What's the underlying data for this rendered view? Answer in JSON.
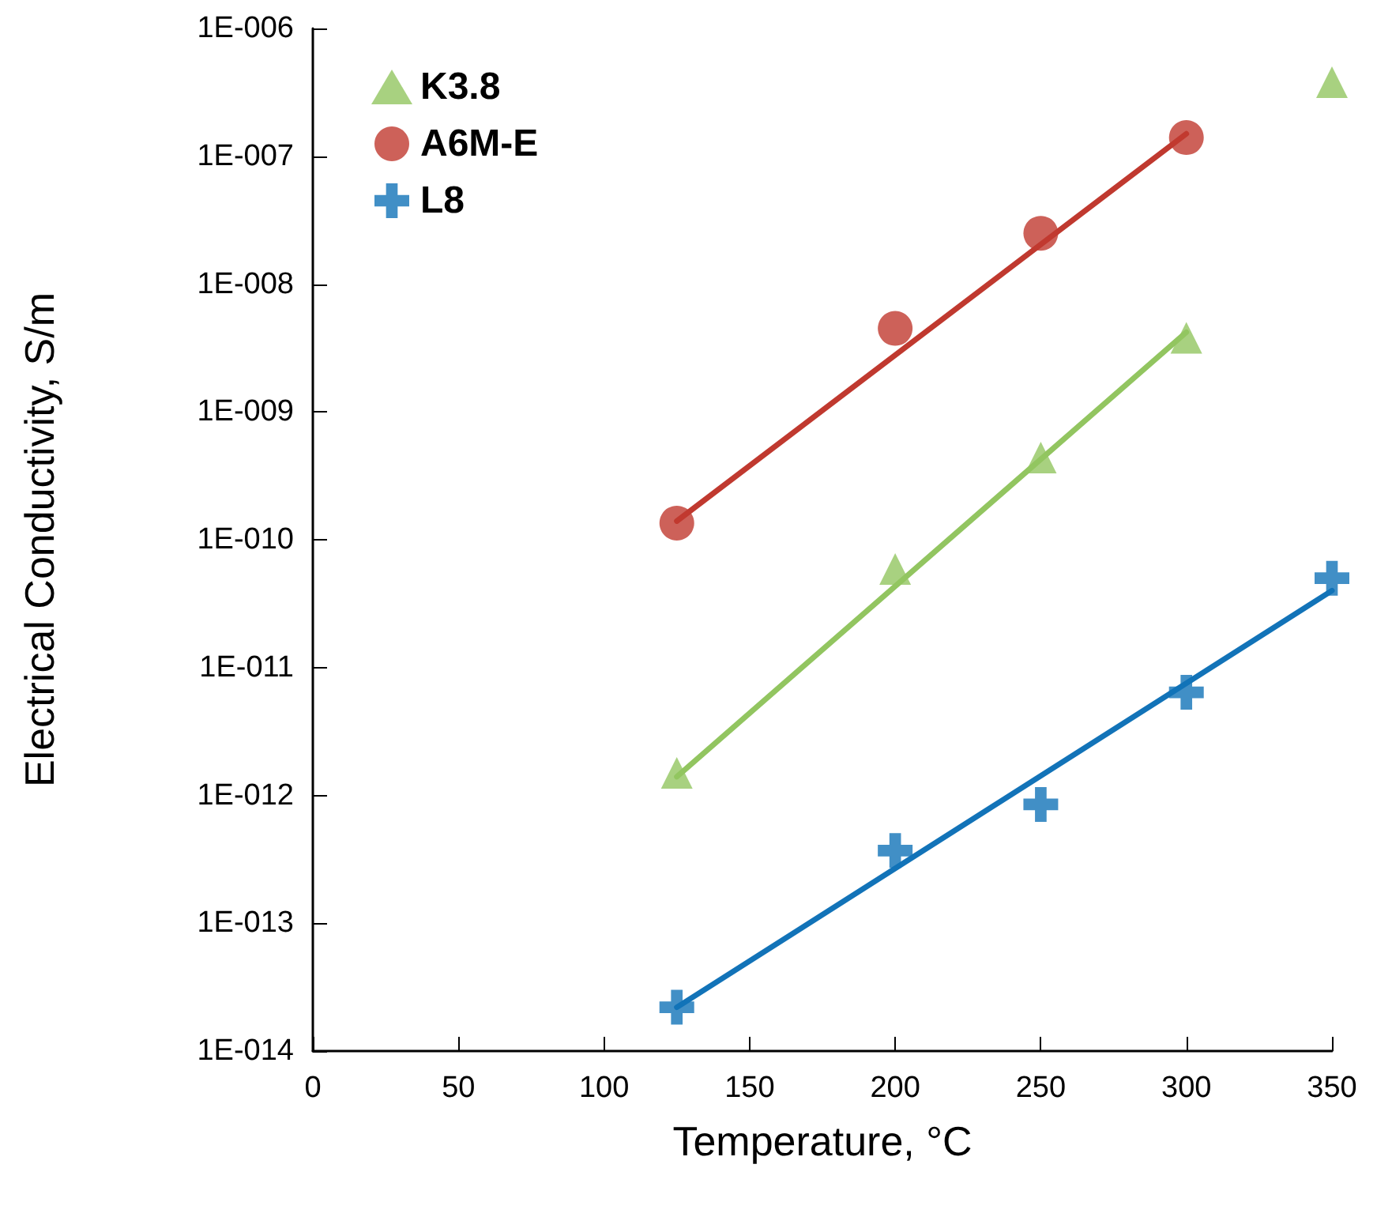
{
  "chart_data": {
    "type": "scatter",
    "xlabel": "Temperature, °C",
    "ylabel": "Electrical Conductivity, S/m",
    "log": "y",
    "grid": false,
    "legend": "top left",
    "xlim": [
      0,
      350
    ],
    "xticks": [
      0,
      50,
      100,
      150,
      200,
      250,
      300,
      350
    ],
    "ylim": [
      1e-14,
      1e-06
    ],
    "yticks": [
      {
        "value": 1e-14,
        "label": "1E-014"
      },
      {
        "value": 1e-13,
        "label": "1E-013"
      },
      {
        "value": 1e-12,
        "label": "1E-012"
      },
      {
        "value": 1e-11,
        "label": "1E-011"
      },
      {
        "value": 1e-10,
        "label": "1E-010"
      },
      {
        "value": 1e-09,
        "label": "1E-009"
      },
      {
        "value": 1e-08,
        "label": "1E-008"
      },
      {
        "value": 1e-07,
        "label": "1E-007"
      },
      {
        "value": 1e-06,
        "label": "1E-006"
      }
    ],
    "series": [
      {
        "name": "K3.8",
        "marker": "triangle",
        "color": "#92c560",
        "x": [
          125,
          200,
          250,
          300,
          350
        ],
        "values": [
          1.5e-12,
          5.9e-11,
          4.4e-10,
          3.8e-09,
          3.8e-07
        ]
      },
      {
        "name": "A6M-E",
        "marker": "circle",
        "color": "#c0392f",
        "x": [
          125,
          200,
          250,
          300
        ],
        "values": [
          1.35e-10,
          4.5e-09,
          2.5e-08,
          1.4e-07
        ]
      },
      {
        "name": "L8",
        "marker": "cross",
        "color": "#1273b8",
        "x": [
          125,
          200,
          250,
          300,
          350
        ],
        "values": [
          2.2e-14,
          3.7e-13,
          8.5e-13,
          6.4e-12,
          5e-11
        ]
      },
      {
        "type": "line",
        "marker": "none",
        "line_style": "solid",
        "color": "#c0392f",
        "x": [
          125,
          300
        ],
        "values": [
          1.4e-10,
          1.5e-07
        ]
      },
      {
        "type": "line",
        "marker": "none",
        "line_style": "solid",
        "color": "#92c560",
        "x": [
          125,
          300
        ],
        "values": [
          1.4e-12,
          4.2e-09
        ]
      },
      {
        "type": "line",
        "marker": "none",
        "line_style": "solid",
        "color": "#1273b8",
        "x": [
          125,
          350
        ],
        "values": [
          2.2e-14,
          4e-11
        ]
      }
    ]
  }
}
